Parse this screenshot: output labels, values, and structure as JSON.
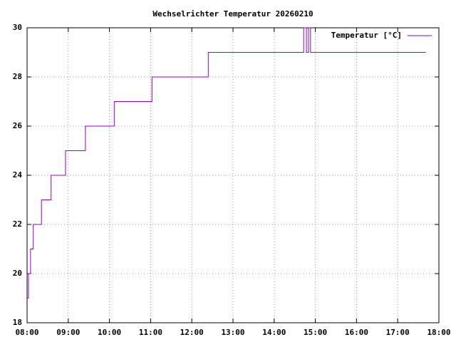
{
  "chart_data": {
    "type": "line",
    "title": "Wechselrichter Temperatur 20260210",
    "x": [
      "08:00",
      "08:02",
      "08:02",
      "08:05",
      "08:05",
      "08:09",
      "08:09",
      "08:21",
      "08:21",
      "08:35",
      "08:35",
      "08:56",
      "08:56",
      "09:25",
      "09:25",
      "10:07",
      "10:07",
      "11:02",
      "11:02",
      "12:24",
      "12:24",
      "14:43",
      "14:43",
      "14:47",
      "14:47",
      "14:50",
      "14:50",
      "14:53",
      "14:53",
      "17:41"
    ],
    "series": [
      {
        "name": "Temperatur [°C]",
        "color": "#9400d3",
        "values": [
          19,
          19,
          20,
          20,
          21,
          21,
          22,
          22,
          23,
          23,
          24,
          24,
          25,
          25,
          26,
          26,
          27,
          27,
          28,
          28,
          29,
          29,
          30,
          30,
          29,
          29,
          30,
          30,
          29,
          29
        ]
      }
    ],
    "xlim": [
      "08:00",
      "18:00"
    ],
    "xticks": [
      "08:00",
      "09:00",
      "10:00",
      "11:00",
      "12:00",
      "13:00",
      "14:00",
      "15:00",
      "16:00",
      "17:00",
      "18:00"
    ],
    "ylim": [
      18,
      30
    ],
    "yticks": [
      18,
      20,
      22,
      24,
      26,
      28,
      30
    ],
    "grid": true,
    "legend": "top-right"
  }
}
